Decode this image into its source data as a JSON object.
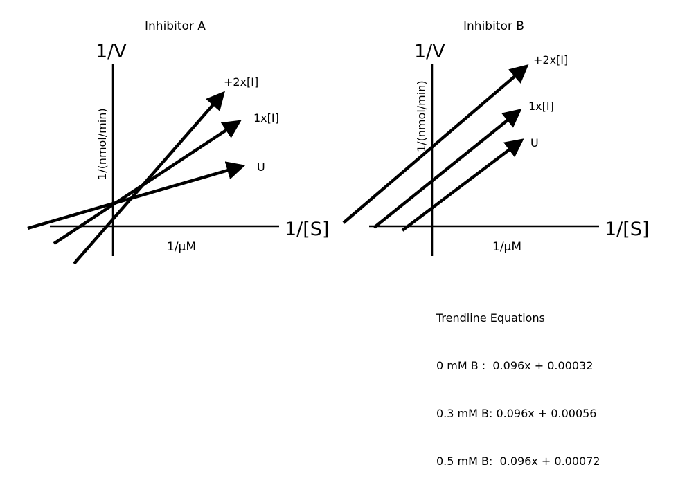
{
  "panels": [
    {
      "title": "Inhibitor A",
      "y_axis_title": "1/V",
      "y_axis_units": "1/(nmol/min)",
      "x_axis_title": "1/[S]",
      "x_axis_units": "1/μM",
      "lines": [
        "+2x[I]",
        "1x[I]",
        "U"
      ]
    },
    {
      "title": "Inhibitor B",
      "y_axis_title": "1/V",
      "y_axis_units": "1/(nmol/min)",
      "x_axis_title": "1/[S]",
      "x_axis_units": "1/μM",
      "lines": [
        "+2x[I]",
        "1x[I]",
        "U"
      ]
    }
  ],
  "trendlines": {
    "heading": "Trendline Equations",
    "rows": [
      "0 mM B :  0.096x + 0.00032",
      "0.3 mM B: 0.096x + 0.00056",
      "0.5 mM B:  0.096x + 0.00072"
    ]
  },
  "colors": {
    "ink": "#000000",
    "background": "#ffffff"
  }
}
